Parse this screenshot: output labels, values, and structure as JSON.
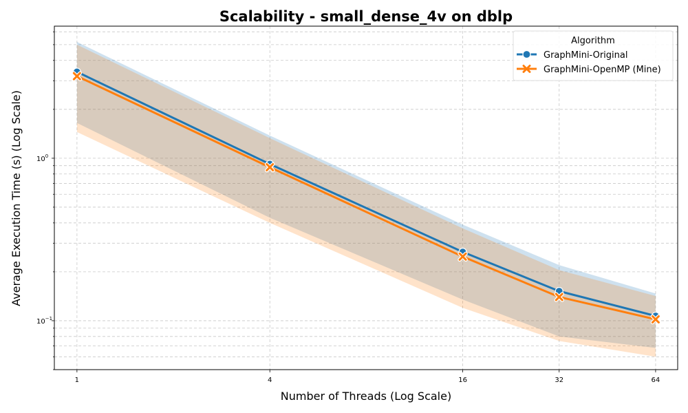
{
  "chart_data": {
    "type": "line",
    "title": "Scalability - small_dense_4v on dblp",
    "xlabel": "Number of Threads (Log Scale)",
    "ylabel": "Average Execution Time (s) (Log Scale)",
    "x_scale": "log2",
    "y_scale": "log10",
    "x": [
      1,
      4,
      16,
      32,
      64
    ],
    "x_tick_labels": [
      "1",
      "4",
      "16",
      "32",
      "64"
    ],
    "ylim": [
      0.05,
      6.5
    ],
    "y_ticks": [
      {
        "value": 1,
        "base": "10",
        "exp": "0"
      },
      {
        "value": 0.1,
        "base": "10",
        "exp": "−1"
      }
    ],
    "grid": true,
    "legend": {
      "title": "Algorithm",
      "position": "top-right"
    },
    "series": [
      {
        "name": "GraphMini-Original",
        "color": "#1f77b4",
        "marker": "circle",
        "values": [
          3.4,
          0.92,
          0.265,
          0.152,
          0.107
        ],
        "band_low": [
          1.65,
          0.43,
          0.135,
          0.08,
          0.068
        ],
        "band_high": [
          5.2,
          1.38,
          0.39,
          0.22,
          0.147
        ]
      },
      {
        "name": "GraphMini-OpenMP (Mine)",
        "color": "#ff7f0e",
        "marker": "x",
        "values": [
          3.2,
          0.88,
          0.248,
          0.14,
          0.102
        ],
        "band_low": [
          1.45,
          0.4,
          0.12,
          0.075,
          0.06
        ],
        "band_high": [
          5.0,
          1.33,
          0.37,
          0.205,
          0.142
        ]
      }
    ]
  }
}
